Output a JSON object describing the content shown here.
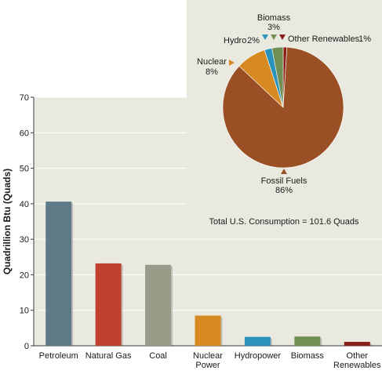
{
  "chart_data": [
    {
      "type": "bar",
      "ylabel": "Quadrillion Btu (Quads)",
      "ylim": [
        0,
        70
      ],
      "yticks": [
        0,
        10,
        20,
        30,
        40,
        50,
        60,
        70
      ],
      "categories": [
        "Petroleum",
        "Natural Gas",
        "Coal",
        "Nuclear Power",
        "Hydropower",
        "Biomass",
        "Other Renewables"
      ],
      "category_lines": [
        [
          "Petroleum"
        ],
        [
          "Natural Gas"
        ],
        [
          "Coal"
        ],
        [
          "Nuclear",
          "Power"
        ],
        [
          "Hydropower"
        ],
        [
          "Biomass"
        ],
        [
          "Other",
          "Renewables"
        ]
      ],
      "values": [
        40.6,
        23.2,
        22.8,
        8.5,
        2.5,
        2.6,
        1.1
      ],
      "colors": [
        "#5e7a87",
        "#c0402d",
        "#979b87",
        "#d88a22",
        "#2b93bb",
        "#6f8f55",
        "#8b1f17"
      ],
      "annotation": "Total U.S. Consumption = 101.6 Quads",
      "grid": true
    },
    {
      "type": "pie",
      "slices": [
        {
          "label": "Fossil Fuels",
          "value": 86,
          "value_text": "86%",
          "color": "#9a5024"
        },
        {
          "label": "Nuclear",
          "value": 8,
          "value_text": "8%",
          "color": "#d88a22"
        },
        {
          "label": "Hydro",
          "value": 2,
          "value_text": "2%",
          "color": "#2b93bb"
        },
        {
          "label": "Biomass",
          "value": 3,
          "value_text": "3%",
          "color": "#6f8f55"
        },
        {
          "label": "Other Renewables",
          "value": 1,
          "value_text": "1%",
          "color": "#8b1f17"
        }
      ]
    }
  ],
  "colors": {
    "panel_bg": "#eae9e0",
    "grid": "#ffffff",
    "axis": "#3a3a3a",
    "text": "#1a1a1a"
  }
}
